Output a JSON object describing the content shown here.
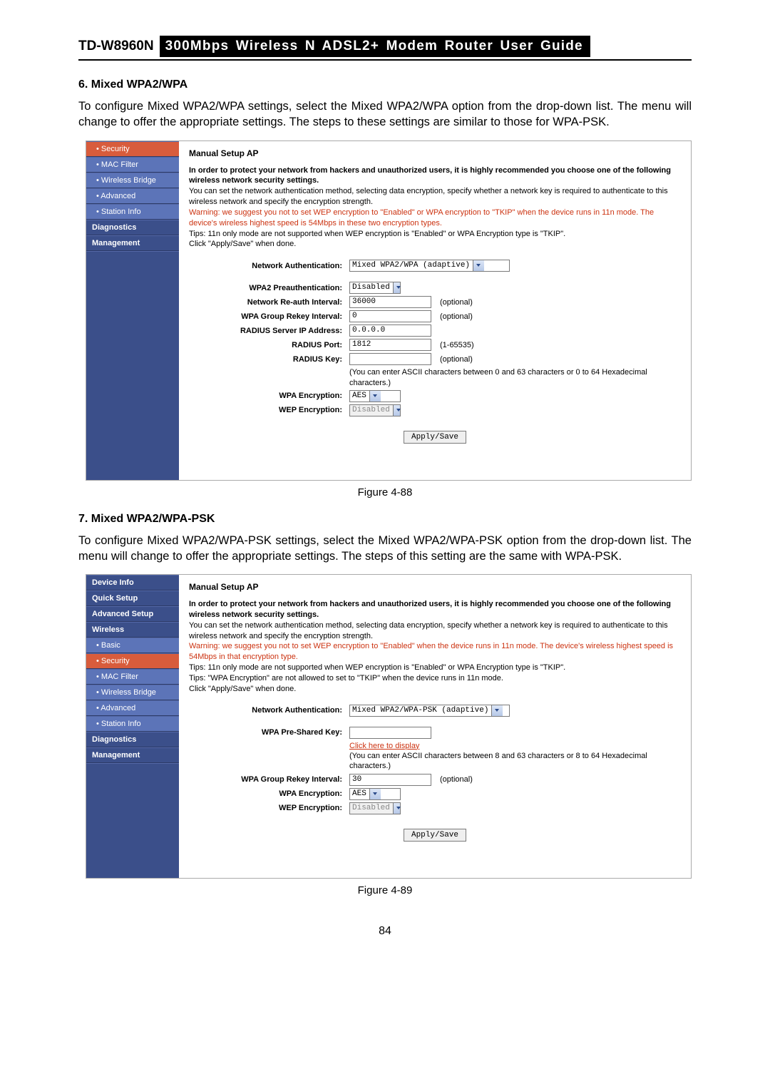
{
  "header": {
    "model": "TD-W8960N",
    "title": "300Mbps Wireless N ADSL2+ Modem Router User Guide"
  },
  "section6": {
    "heading": "6.   Mixed WPA2/WPA",
    "paragraph": "To configure Mixed WPA2/WPA settings, select the Mixed WPA2/WPA option from the drop-down list. The menu will change to offer the appropriate settings. The steps to these settings are similar to those for WPA-PSK."
  },
  "fig88": {
    "caption": "Figure 4-88",
    "sidebar": [
      {
        "label": "• Security",
        "cls": "sub active"
      },
      {
        "label": "• MAC Filter",
        "cls": "sub"
      },
      {
        "label": "• Wireless Bridge",
        "cls": "sub"
      },
      {
        "label": "• Advanced",
        "cls": "sub"
      },
      {
        "label": "• Station Info",
        "cls": "sub"
      },
      {
        "label": "Diagnostics",
        "cls": ""
      },
      {
        "label": "Management",
        "cls": ""
      }
    ],
    "title": "Manual Setup AP",
    "intro_bold": "In order to protect your network from hackers and unauthorized users, it is highly recommended you choose one of the following wireless network security settings.",
    "intro_line2": "You can set the network authentication method, selecting data encryption, specify whether a network key is required to authenticate to this wireless network and specify the encryption strength.",
    "intro_warn": "Warning: we suggest you not to set WEP encryption to \"Enabled\" or WPA encryption to \"TKIP\" when the device runs in 11n mode. The device's wireless highest speed is 54Mbps in these two encryption types.",
    "intro_tips": "Tips: 11n only mode are not supported when WEP encryption is \"Enabled\" or WPA Encryption type is \"TKIP\".",
    "intro_click": "Click \"Apply/Save\" when done.",
    "rows": {
      "net_auth_label": "Network Authentication:",
      "net_auth_value": "Mixed WPA2/WPA (adaptive)",
      "wpa2_preauth_label": "WPA2 Preauthentication:",
      "wpa2_preauth_value": "Disabled",
      "reauth_label": "Network Re-auth Interval:",
      "reauth_value": "36000",
      "reauth_note": "(optional)",
      "rekey_label": "WPA Group Rekey Interval:",
      "rekey_value": "0",
      "rekey_note": "(optional)",
      "radius_ip_label": "RADIUS Server IP Address:",
      "radius_ip_value": "0.0.0.0",
      "radius_port_label": "RADIUS Port:",
      "radius_port_value": "1812",
      "radius_port_note": "(1-65535)",
      "radius_key_label": "RADIUS Key:",
      "radius_key_value": "",
      "radius_key_note": "(optional)",
      "radius_hint": "(You can enter ASCII characters between 0 and 63 characters or 0 to 64 Hexadecimal characters.)",
      "wpa_enc_label": "WPA Encryption:",
      "wpa_enc_value": "AES",
      "wep_enc_label": "WEP Encryption:",
      "wep_enc_value": "Disabled"
    },
    "apply": "Apply/Save"
  },
  "section7": {
    "heading": "7.   Mixed WPA2/WPA-PSK",
    "paragraph": "To configure Mixed WPA2/WPA-PSK settings, select the Mixed WPA2/WPA-PSK option from the drop-down list. The menu will change to offer the appropriate settings. The steps of this setting are the same with WPA-PSK."
  },
  "fig89": {
    "caption": "Figure 4-89",
    "sidebar": [
      {
        "label": "Device Info",
        "cls": ""
      },
      {
        "label": "Quick Setup",
        "cls": ""
      },
      {
        "label": "Advanced Setup",
        "cls": ""
      },
      {
        "label": "Wireless",
        "cls": ""
      },
      {
        "label": "• Basic",
        "cls": "sub"
      },
      {
        "label": "• Security",
        "cls": "sub active"
      },
      {
        "label": "• MAC Filter",
        "cls": "sub"
      },
      {
        "label": "• Wireless Bridge",
        "cls": "sub"
      },
      {
        "label": "• Advanced",
        "cls": "sub"
      },
      {
        "label": "• Station Info",
        "cls": "sub"
      },
      {
        "label": "Diagnostics",
        "cls": ""
      },
      {
        "label": "Management",
        "cls": ""
      }
    ],
    "title": "Manual Setup AP",
    "intro_bold": "In order to protect your network from hackers and unauthorized users, it is highly recommended you choose one of the following wireless network security settings.",
    "intro_line2": "You can set the network authentication method, selecting data encryption, specify whether a network key is required to authenticate to this wireless network and specify the encryption strength.",
    "intro_warn": "Warning: we suggest you not to set WEP encryption to \"Enabled\" when the device runs in 11n mode. The device's wireless highest speed is 54Mbps in that encryption type.",
    "intro_tips1": "Tips: 11n only mode are not supported when WEP encryption is \"Enabled\" or WPA Encryption type is \"TKIP\".",
    "intro_tips2": "Tips: \"WPA Encryption\" are not allowed to set to \"TKIP\" when the device runs in 11n mode.",
    "intro_click": "Click \"Apply/Save\" when done.",
    "rows": {
      "net_auth_label": "Network Authentication:",
      "net_auth_value": "Mixed WPA2/WPA-PSK (adaptive)",
      "psk_label": "WPA Pre-Shared Key:",
      "psk_value": "",
      "psk_link": "Click here to display",
      "psk_hint": "(You can enter ASCII characters between 8 and 63 characters or 8 to 64 Hexadecimal characters.)",
      "rekey_label": "WPA Group Rekey Interval:",
      "rekey_value": "30",
      "rekey_note": "(optional)",
      "wpa_enc_label": "WPA Encryption:",
      "wpa_enc_value": "AES",
      "wep_enc_label": "WEP Encryption:",
      "wep_enc_value": "Disabled"
    },
    "apply": "Apply/Save"
  },
  "pagenum": "84"
}
